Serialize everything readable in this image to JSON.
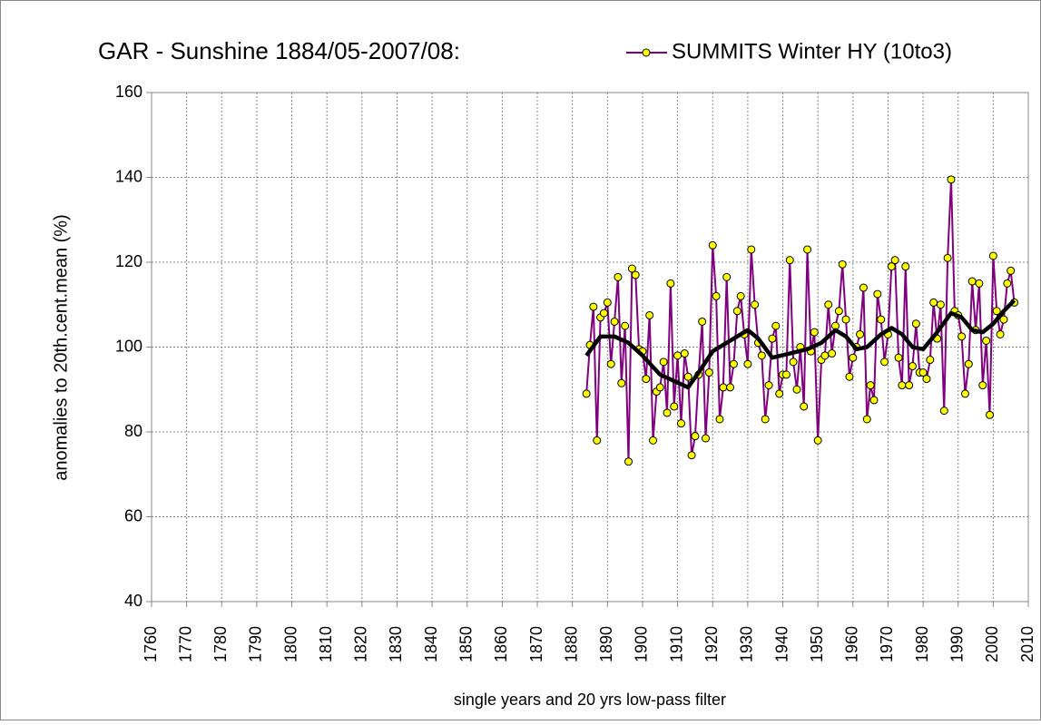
{
  "chart_data": {
    "type": "line",
    "title": "GAR - Sunshine 1884/05-2007/08:",
    "y_label": "anomalies to 20th.cent.mean (%)",
    "x_label": "single years and 20 yrs low-pass filter",
    "xlim": [
      1760,
      2010
    ],
    "xticks": [
      1760,
      1770,
      1780,
      1790,
      1800,
      1810,
      1820,
      1830,
      1840,
      1850,
      1860,
      1870,
      1880,
      1890,
      1900,
      1910,
      1920,
      1930,
      1940,
      1950,
      1960,
      1970,
      1980,
      1990,
      2000,
      2010
    ],
    "ylim": [
      40,
      160
    ],
    "yticks": [
      40,
      60,
      80,
      100,
      120,
      140,
      160
    ],
    "grid": true,
    "legend": "top",
    "series": [
      {
        "name": "SUMMITS Winter HY (10to3)",
        "color": "#800080",
        "marker_color": "#ffff00",
        "x": [
          1884,
          1885,
          1886,
          1887,
          1888,
          1889,
          1890,
          1891,
          1892,
          1893,
          1894,
          1895,
          1896,
          1897,
          1898,
          1899,
          1900,
          1901,
          1902,
          1903,
          1904,
          1905,
          1906,
          1907,
          1908,
          1909,
          1910,
          1911,
          1912,
          1913,
          1914,
          1915,
          1916,
          1917,
          1918,
          1919,
          1920,
          1921,
          1922,
          1923,
          1924,
          1925,
          1926,
          1927,
          1928,
          1929,
          1930,
          1931,
          1932,
          1933,
          1934,
          1935,
          1936,
          1937,
          1938,
          1939,
          1940,
          1941,
          1942,
          1943,
          1944,
          1945,
          1946,
          1947,
          1948,
          1949,
          1950,
          1951,
          1952,
          1953,
          1954,
          1955,
          1956,
          1957,
          1958,
          1959,
          1960,
          1961,
          1962,
          1963,
          1964,
          1965,
          1966,
          1967,
          1968,
          1969,
          1970,
          1971,
          1972,
          1973,
          1974,
          1975,
          1976,
          1977,
          1978,
          1979,
          1980,
          1981,
          1982,
          1983,
          1984,
          1985,
          1986,
          1987,
          1988,
          1989,
          1990,
          1991,
          1992,
          1993,
          1994,
          1995,
          1996,
          1997,
          1998,
          1999,
          2000,
          2001,
          2002,
          2003,
          2004,
          2005,
          2006
        ],
        "values": [
          89,
          100.5,
          109.5,
          78,
          107,
          108,
          110.5,
          96,
          106,
          116.5,
          91.5,
          105,
          73,
          118.5,
          117,
          99.5,
          99,
          92.5,
          107.5,
          78,
          89.5,
          90.5,
          96.5,
          84.5,
          115,
          86,
          98,
          82,
          98.5,
          93,
          74.5,
          79,
          93.5,
          106,
          78.5,
          94,
          124,
          112,
          83,
          90.5,
          116.5,
          90.5,
          96,
          108.5,
          112,
          103,
          96,
          123,
          110,
          101,
          98,
          83,
          91,
          102,
          105,
          89,
          93.5,
          93.5,
          120.5,
          96.5,
          90,
          100,
          86,
          123,
          99,
          103.5,
          78,
          97,
          98,
          110,
          98.5,
          105,
          108.5,
          119.5,
          106.5,
          93,
          97.5,
          100,
          103,
          114,
          83,
          91,
          87.5,
          112.5,
          106.5,
          96.5,
          103,
          119,
          120.5,
          97.5,
          91,
          119,
          91,
          95.5,
          105.5,
          94,
          94,
          92.5,
          97,
          110.5,
          102,
          110,
          85,
          121,
          139.5,
          108.5,
          107.5,
          102.5,
          89,
          96,
          115.5,
          104,
          115,
          91,
          101.5,
          84,
          121.5,
          108.5,
          103,
          106.5,
          115,
          118,
          110.5
        ]
      },
      {
        "color": "#000000",
        "x": [
          1884,
          1888,
          1892,
          1896,
          1900,
          1905,
          1909,
          1913,
          1916,
          1920,
          1925,
          1930,
          1933,
          1937,
          1942,
          1947,
          1951,
          1955,
          1958,
          1961,
          1964,
          1968,
          1971,
          1974,
          1977,
          1980,
          1984,
          1988,
          1991,
          1994,
          1997,
          2000,
          2003,
          2006
        ],
        "values": [
          98,
          102.5,
          102.5,
          101,
          98,
          93.5,
          92,
          90.5,
          94,
          99,
          101.5,
          104,
          102,
          97.5,
          98.5,
          99.5,
          101,
          104,
          102.5,
          99.5,
          100,
          103,
          104.5,
          103,
          100,
          99.5,
          103.5,
          108,
          107,
          104,
          103.5,
          105.5,
          108.5,
          111
        ]
      }
    ]
  }
}
